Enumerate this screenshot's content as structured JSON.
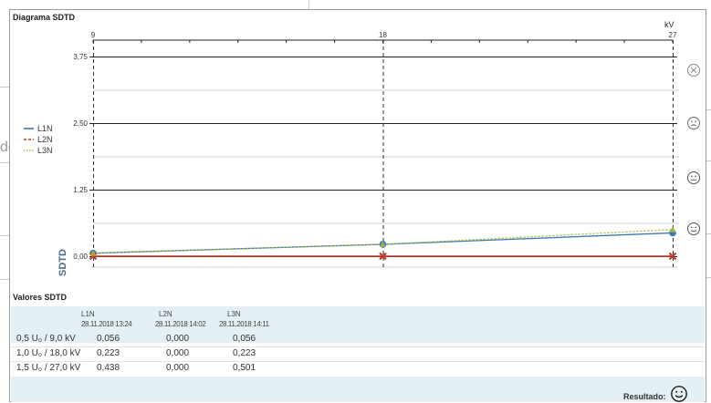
{
  "background": {
    "fragment_text": "de"
  },
  "panel": {
    "title": "Diagrama SDTD",
    "unit": "kV"
  },
  "chart_data": {
    "type": "line",
    "title": "Diagrama SDTD",
    "xlabel": "kV",
    "ylabel": "SDTD",
    "x_ticks": [
      "9",
      "18",
      "27"
    ],
    "y_ticks": [
      "3,75",
      "2,50",
      "1,25",
      "0,00"
    ],
    "xlim": [
      9,
      27
    ],
    "ylim": [
      0,
      3.75
    ],
    "x": [
      9,
      18,
      27
    ],
    "series": [
      {
        "name": "L1N",
        "color": "#3d7ab3",
        "values": [
          0.056,
          0.223,
          0.438
        ]
      },
      {
        "name": "L2N",
        "color": "#c0392b",
        "values": [
          0.0,
          0.0,
          0.0
        ]
      },
      {
        "name": "L3N",
        "color": "#a6b83a",
        "values": [
          0.056,
          0.223,
          0.501
        ]
      }
    ],
    "legend_position": "left"
  },
  "status_icons": [
    "close-circle-icon",
    "sad-face-icon",
    "neutral-face-icon",
    "happy-face-icon"
  ],
  "table": {
    "title": "Valores SDTD",
    "columns": [
      {
        "name": "L1N",
        "timestamp": "28.11.2018 13:24"
      },
      {
        "name": "L2N",
        "timestamp": "28.11.2018 14:02"
      },
      {
        "name": "L3N",
        "timestamp": "28.11.2018 14:11"
      }
    ],
    "rows": [
      {
        "label": "0,5 U₀ /   9,0 kV",
        "values": [
          "0,056",
          "0,000",
          "0,056"
        ]
      },
      {
        "label": "1,0 U₀ / 18,0 kV",
        "values": [
          "0,223",
          "0,000",
          "0,223"
        ]
      },
      {
        "label": "1,5 U₀ / 27,0 kV",
        "values": [
          "0,438",
          "0,000",
          "0,501"
        ]
      }
    ]
  },
  "footer": {
    "result_label": "Resultado:"
  }
}
